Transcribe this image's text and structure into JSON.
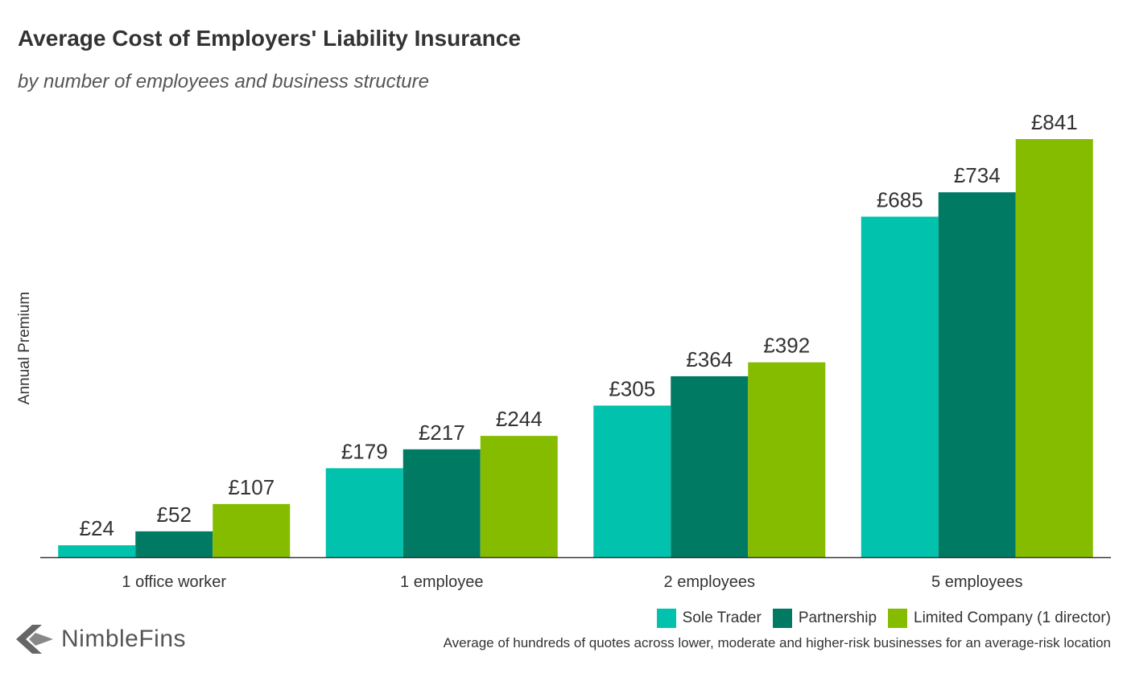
{
  "chart_data": {
    "type": "bar",
    "title": "Average Cost of Employers' Liability Insurance",
    "subtitle": "by number of employees and business structure",
    "xlabel": "",
    "ylabel": "Annual Premium",
    "categories": [
      "1 office worker",
      "1 employee",
      "2 employees",
      "5 employees"
    ],
    "series": [
      {
        "name": "Sole Trader",
        "color": "#00c2ad",
        "values": [
          24,
          179,
          305,
          685
        ],
        "labels": [
          "£24",
          "£179",
          "£305",
          "£685"
        ]
      },
      {
        "name": "Partnership",
        "color": "#007a63",
        "values": [
          52,
          217,
          364,
          734
        ],
        "labels": [
          "£52",
          "£217",
          "£364",
          "£734"
        ]
      },
      {
        "name": "Limited Company (1 director)",
        "color": "#86bc00",
        "values": [
          107,
          244,
          392,
          841
        ],
        "labels": [
          "£107",
          "£244",
          "£392",
          "£841"
        ]
      }
    ],
    "ylim": [
      0,
      841
    ],
    "grid": false,
    "legend": "bottom-right"
  },
  "brand": {
    "logo_text": "NimbleFins",
    "logo_icon": "nimblefins-arrow-icon"
  },
  "footnote": "Average of hundreds of quotes across lower, moderate and higher-risk businesses for an average-risk location"
}
